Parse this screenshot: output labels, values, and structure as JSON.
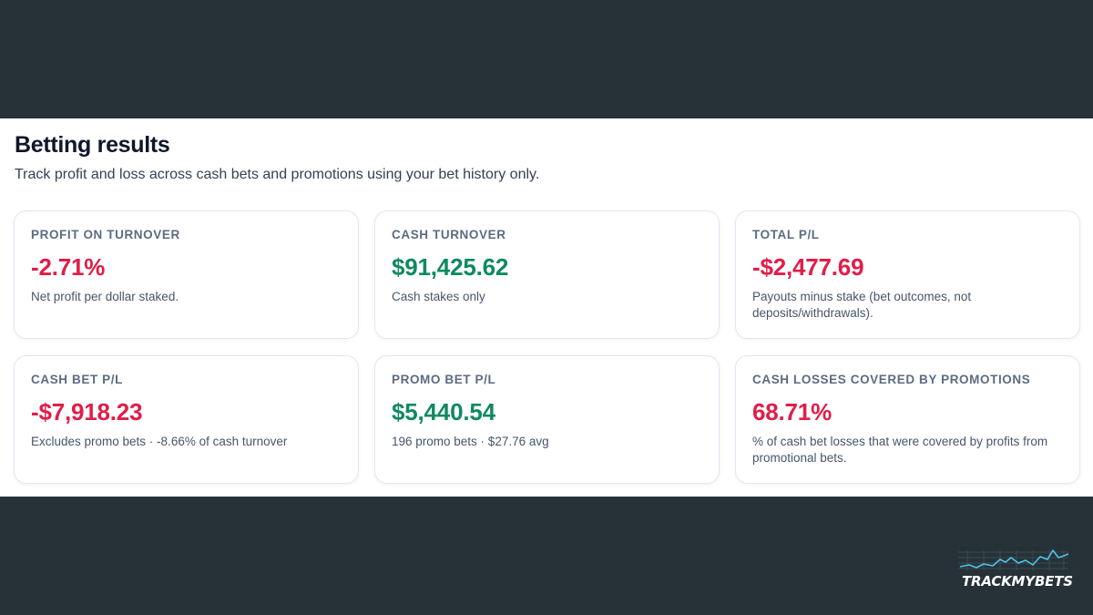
{
  "header": {
    "title": "Betting results",
    "subtitle": "Track profit and loss across cash bets and promotions using your bet history only."
  },
  "cards": [
    {
      "label": "PROFIT ON TURNOVER",
      "value": "-2.71%",
      "description": "Net profit per dollar staked.",
      "tone": "negative"
    },
    {
      "label": "CASH TURNOVER",
      "value": "$91,425.62",
      "description": "Cash stakes only",
      "tone": "positive"
    },
    {
      "label": "TOTAL P/L",
      "value": "-$2,477.69",
      "description": "Payouts minus stake (bet outcomes, not deposits/withdrawals).",
      "tone": "negative"
    },
    {
      "label": "CASH BET P/L",
      "value": "-$7,918.23",
      "description": "Excludes promo bets · -8.66% of cash turnover",
      "tone": "negative"
    },
    {
      "label": "PROMO BET P/L",
      "value": "$5,440.54",
      "description": "196 promo bets · $27.76 avg",
      "tone": "positive"
    },
    {
      "label": "CASH LOSSES COVERED BY PROMOTIONS",
      "value": "68.71%",
      "description": "% of cash bet losses that were covered by profits from promotional bets.",
      "tone": "negative"
    }
  ],
  "colors": {
    "background": "#263238",
    "panel": "#ffffff",
    "negative": "#e11d48",
    "positive": "#0f8a5f",
    "logo_line": "#4fc3e8"
  },
  "brand": {
    "name": "TRACKMYBETS",
    "icon": "sparkline-logo-icon"
  }
}
